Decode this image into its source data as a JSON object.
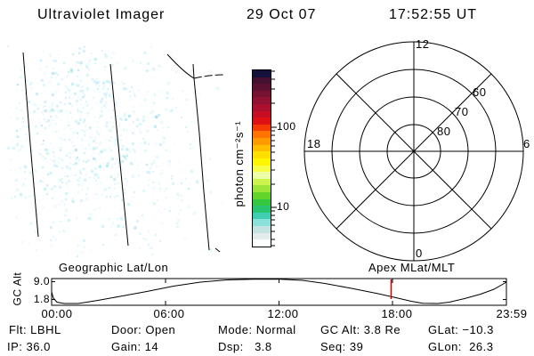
{
  "header": {
    "title": "Ultraviolet Imager",
    "date": "29 Oct 07",
    "time": "17:52:55 UT"
  },
  "colorbar": {
    "unit_label": "photon cm⁻²s⁻¹",
    "tick_top": "100",
    "tick_bottom": "10",
    "colors": [
      "#14123c",
      "#431030",
      "#5c1132",
      "#771233",
      "#911233",
      "#ab102e",
      "#c60e25",
      "#e01115",
      "#f63a04",
      "#ff7300",
      "#ff9900",
      "#ffbe00",
      "#ffdf00",
      "#fef600",
      "#f6ff45",
      "#edffa6",
      "#cdf44e",
      "#9ce63a",
      "#62d42a",
      "#34c840",
      "#28c472",
      "#40cdb2",
      "#8ae0da",
      "#c4e2e0",
      "#e2edeb",
      "#fdfefe"
    ]
  },
  "polar": {
    "mlt_top": "12",
    "mlt_left": "18",
    "mlt_right": "6",
    "mlt_bottom": "0",
    "mlat_80": "80",
    "mlat_70": "70",
    "mlat_60": "60"
  },
  "panel_labels": {
    "left": "Geographic Lat/Lon",
    "right": "Apex MLat/MLT"
  },
  "strip_chart": {
    "y_axis_label": "GC Alt",
    "y_tick_top": "9.0",
    "y_tick_bottom": "1.8",
    "x_ticks": [
      "00:00",
      "06:00",
      "12:00",
      "18:00",
      "23:59"
    ],
    "marker_color": "#cc0000"
  },
  "footer": {
    "rows": [
      [
        "Flt: LBHL",
        "Door: Open",
        "Mode: Normal",
        "GC Alt: 3.8 Re",
        "GLat: −10.3"
      ],
      [
        "IP: 36.0",
        "Gain: 14",
        "Dsp:   3.8",
        "Seq: 39",
        "GLon:  26.3"
      ]
    ]
  }
}
